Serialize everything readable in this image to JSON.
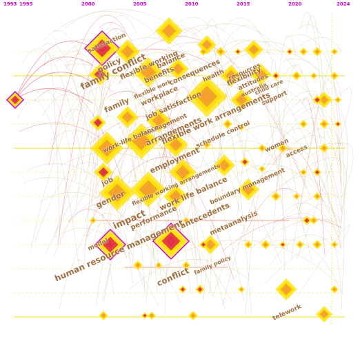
{
  "colors": {
    "year_label": "#d200d2",
    "keyword_label": "#a07040",
    "node_warm": "#ffe000",
    "node_hot": "#e0304a",
    "node_border": "#d200d2",
    "link_light": "#c8b48a",
    "lane_line": "#f0e020",
    "lane_line_red": "#e85050"
  },
  "years": [
    "1993",
    "1995",
    "2000",
    "2005",
    "2010",
    "2015",
    "2020",
    "2024"
  ],
  "keywords": [
    "satisfaction",
    "policy",
    "family conflict",
    "flexible working",
    "balance",
    "benefits",
    "flexible work",
    "consequences",
    "health",
    "resources",
    "attitudes",
    "flexibility",
    "australia",
    "child care",
    "support",
    "family",
    "workplace",
    "job satisfaction",
    "management",
    "arrangements",
    "flexible work arrangements",
    "work-life balance",
    "schedule control",
    "women",
    "access",
    "employment",
    "job",
    "gender",
    "flexible working arrangements",
    "boundary management",
    "work life balance",
    "performance",
    "impact",
    "antecedents",
    "metaanalysis",
    "model",
    "human resource management",
    "family policy",
    "conflict",
    "telework"
  ]
}
